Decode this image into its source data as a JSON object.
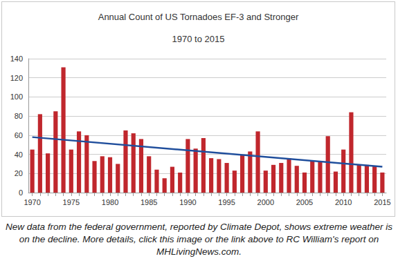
{
  "chart_data": {
    "type": "bar",
    "title": "Annual Count of US Tornadoes EF-3 and Stronger",
    "subtitle": "1970 to 2015",
    "caption": "New data from the federal government, reported by Climate Depot, shows extreme weather is on the decline. More details, click this image or the link above to RC William's report on MHLivingNews.com.",
    "categories": [
      "1970",
      null,
      null,
      null,
      null,
      "1975",
      null,
      null,
      null,
      null,
      "1980",
      null,
      null,
      null,
      null,
      "1985",
      null,
      null,
      null,
      null,
      "1990",
      null,
      null,
      null,
      null,
      "1995",
      null,
      null,
      null,
      null,
      "2000",
      null,
      null,
      null,
      null,
      "2005",
      null,
      null,
      null,
      null,
      "2010",
      null,
      null,
      null,
      null,
      "2015"
    ],
    "series": [
      {
        "type": "bar",
        "color": "#c0272d",
        "values": [
          45,
          82,
          41,
          85,
          131,
          45,
          64,
          60,
          33,
          38,
          37,
          30,
          65,
          62,
          56,
          38,
          24,
          15,
          27,
          21,
          56,
          46,
          57,
          36,
          35,
          31,
          23,
          39,
          43,
          64,
          23,
          29,
          31,
          36,
          28,
          21,
          33,
          32,
          59,
          22,
          45,
          84,
          29,
          29,
          28,
          21
        ]
      },
      {
        "type": "line",
        "color": "#1f4e9c",
        "line_style": "solid",
        "values": [
          58,
          null,
          null,
          null,
          null,
          null,
          null,
          null,
          null,
          null,
          null,
          null,
          null,
          null,
          null,
          null,
          null,
          null,
          null,
          null,
          null,
          null,
          null,
          null,
          null,
          null,
          null,
          null,
          null,
          null,
          null,
          null,
          null,
          null,
          null,
          null,
          null,
          null,
          null,
          null,
          null,
          null,
          null,
          null,
          null,
          27
        ]
      }
    ],
    "ylim": [
      0,
      140
    ],
    "yticks": [
      0,
      20,
      40,
      60,
      80,
      100,
      120,
      140
    ],
    "grid": true
  }
}
